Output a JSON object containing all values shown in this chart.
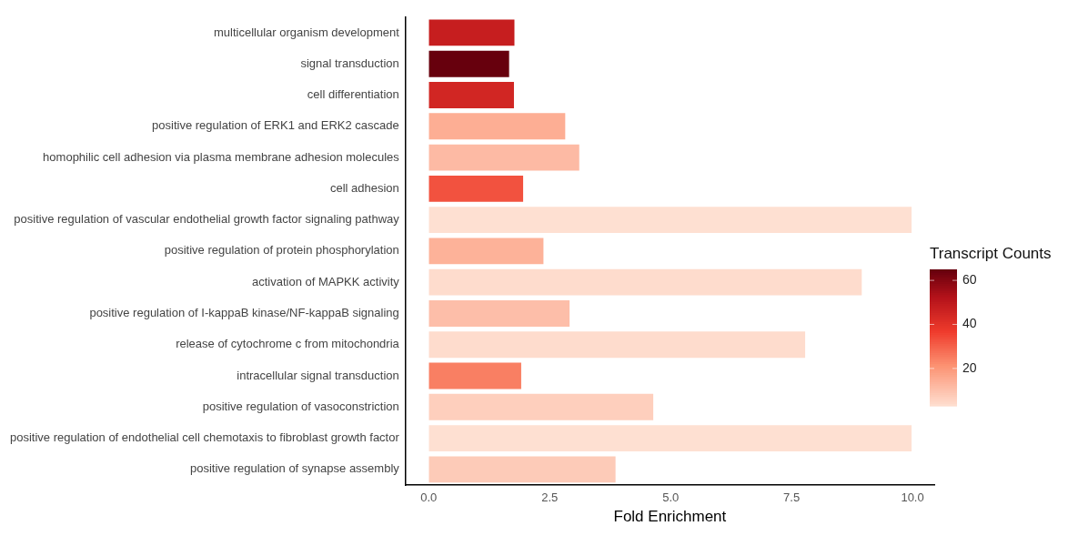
{
  "chart_data": {
    "type": "bar",
    "orientation": "horizontal",
    "xlabel": "Fold Enrichment",
    "clabel": "Transcript Counts",
    "categories": [
      "multicellular organism development",
      "signal transduction",
      "cell differentiation",
      "positive regulation of ERK1 and ERK2 cascade",
      "homophilic cell adhesion via plasma membrane adhesion molecules",
      "cell adhesion",
      "positive regulation of vascular endothelial growth factor signaling pathway",
      "positive regulation of protein phosphorylation",
      "activation of MAPKK activity",
      "positive regulation of I-kappaB kinase/NF-kappaB signaling",
      "release of cytochrome c from mitochondria",
      "intracellular signal transduction",
      "positive regulation of vasoconstriction",
      "positive regulation of endothelial cell chemotaxis to fibroblast growth factor",
      "positive regulation of synapse assembly"
    ],
    "values": [
      1.79,
      1.68,
      1.78,
      2.84,
      3.13,
      1.97,
      10,
      2.39,
      8.97,
      2.93,
      7.8,
      1.93,
      4.66,
      10,
      3.88
    ],
    "cvalues": [
      48,
      65,
      45,
      15,
      12,
      33,
      3,
      14,
      4,
      11,
      4,
      25,
      7,
      3,
      8
    ],
    "clim": [
      3,
      65
    ],
    "cticks": [
      20,
      40,
      60
    ],
    "xlim": [
      -0.48,
      10.45
    ],
    "xticks": [
      {
        "value": 0,
        "label": "0.0"
      },
      {
        "value": 2.5,
        "label": "2.5"
      },
      {
        "value": 5,
        "label": "5.0"
      },
      {
        "value": 7.5,
        "label": "7.5"
      },
      {
        "value": 10,
        "label": "10.0"
      }
    ],
    "grid": false,
    "legend": false
  }
}
